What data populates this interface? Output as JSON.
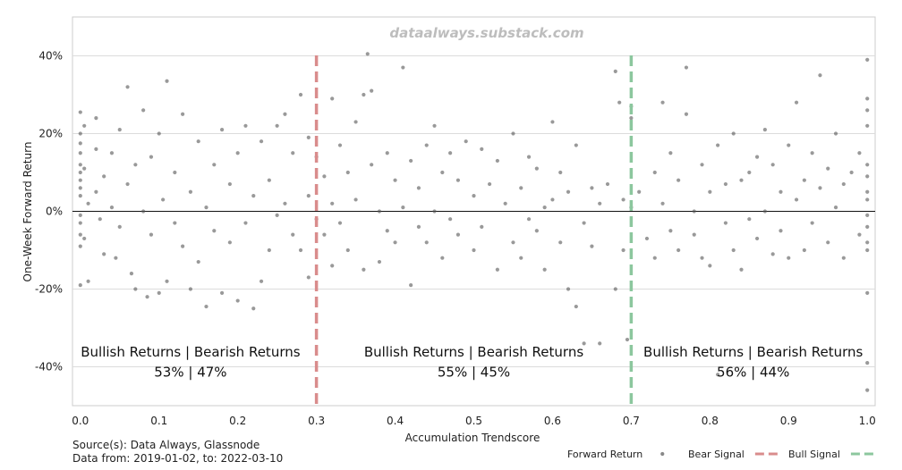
{
  "chart_data": {
    "type": "scatter",
    "watermark": "dataalways.substack.com",
    "xlabel": "Accumulation Trendscore",
    "ylabel": "One-Week Forward Return",
    "xlim": [
      -0.01,
      1.01
    ],
    "ylim": [
      -0.5,
      0.5
    ],
    "x_ticks": [
      0.0,
      0.1,
      0.2,
      0.3,
      0.4,
      0.5,
      0.6,
      0.7,
      0.8,
      0.9,
      1.0
    ],
    "x_tick_labels": [
      "0.0",
      "0.1",
      "0.2",
      "0.3",
      "0.4",
      "0.5",
      "0.6",
      "0.7",
      "0.8",
      "0.9",
      "1.0"
    ],
    "y_ticks": [
      -0.4,
      -0.2,
      0.0,
      0.2,
      0.4
    ],
    "y_tick_labels": [
      "-40%",
      "-20%",
      "0%",
      "20%",
      "40%"
    ],
    "grid": "horizontal",
    "zero_line": 0.0,
    "signal_lines": [
      {
        "name": "Bear Signal",
        "x": 0.3,
        "color": "#d98c8c"
      },
      {
        "name": "Bull Signal",
        "x": 0.7,
        "color": "#8cc79e"
      }
    ],
    "regions": [
      {
        "header": "Bullish Returns  | Bearish Returns",
        "values": "53% | 47%",
        "x_center": 0.14
      },
      {
        "header": "Bullish Returns  | Bearish Returns",
        "values": "55% | 45%",
        "x_center": 0.5
      },
      {
        "header": "Bullish Returns  | Bearish Returns",
        "values": "56% | 44%",
        "x_center": 0.855
      }
    ],
    "region_y": {
      "header": -0.373,
      "values": -0.425
    },
    "legend": {
      "placement": "bottom-right",
      "entries": [
        {
          "label": "Forward Return",
          "kind": "dot",
          "color": "#555555"
        },
        {
          "label": "Bear Signal",
          "kind": "dash",
          "color": "#d98c8c"
        },
        {
          "label": "Bull Signal",
          "kind": "dash",
          "color": "#8cc79e"
        }
      ]
    },
    "series": [
      {
        "name": "Forward Return",
        "color": "#555555",
        "points": [
          [
            0.0,
            0.255
          ],
          [
            0.0,
            0.2
          ],
          [
            0.0,
            0.175
          ],
          [
            0.0,
            0.15
          ],
          [
            0.0,
            0.12
          ],
          [
            0.0,
            0.1
          ],
          [
            0.0,
            0.08
          ],
          [
            0.0,
            0.06
          ],
          [
            0.0,
            0.04
          ],
          [
            0.0,
            -0.01
          ],
          [
            0.0,
            -0.03
          ],
          [
            0.0,
            -0.06
          ],
          [
            0.0,
            -0.09
          ],
          [
            0.0,
            -0.19
          ],
          [
            0.005,
            0.22
          ],
          [
            0.005,
            0.11
          ],
          [
            0.005,
            -0.07
          ],
          [
            0.01,
            -0.18
          ],
          [
            0.01,
            0.02
          ],
          [
            0.02,
            0.24
          ],
          [
            0.02,
            0.16
          ],
          [
            0.02,
            0.05
          ],
          [
            0.025,
            -0.02
          ],
          [
            0.03,
            -0.11
          ],
          [
            0.03,
            0.09
          ],
          [
            0.04,
            0.15
          ],
          [
            0.04,
            0.01
          ],
          [
            0.045,
            -0.12
          ],
          [
            0.05,
            0.21
          ],
          [
            0.05,
            -0.04
          ],
          [
            0.06,
            0.32
          ],
          [
            0.06,
            0.07
          ],
          [
            0.065,
            -0.16
          ],
          [
            0.07,
            0.12
          ],
          [
            0.07,
            -0.2
          ],
          [
            0.08,
            0.26
          ],
          [
            0.08,
            0.0
          ],
          [
            0.085,
            -0.22
          ],
          [
            0.09,
            0.14
          ],
          [
            0.09,
            -0.06
          ],
          [
            0.1,
            0.2
          ],
          [
            0.1,
            -0.21
          ],
          [
            0.105,
            0.03
          ],
          [
            0.11,
            0.335
          ],
          [
            0.11,
            -0.18
          ],
          [
            0.12,
            0.1
          ],
          [
            0.12,
            -0.03
          ],
          [
            0.13,
            0.25
          ],
          [
            0.13,
            -0.09
          ],
          [
            0.14,
            0.05
          ],
          [
            0.14,
            -0.2
          ],
          [
            0.15,
            0.18
          ],
          [
            0.15,
            -0.13
          ],
          [
            0.16,
            0.01
          ],
          [
            0.16,
            -0.245
          ],
          [
            0.17,
            0.12
          ],
          [
            0.17,
            -0.05
          ],
          [
            0.18,
            0.21
          ],
          [
            0.18,
            -0.21
          ],
          [
            0.19,
            0.07
          ],
          [
            0.19,
            -0.08
          ],
          [
            0.2,
            0.15
          ],
          [
            0.2,
            -0.23
          ],
          [
            0.21,
            0.22
          ],
          [
            0.21,
            -0.03
          ],
          [
            0.22,
            -0.25
          ],
          [
            0.22,
            0.04
          ],
          [
            0.23,
            0.18
          ],
          [
            0.23,
            -0.18
          ],
          [
            0.24,
            0.08
          ],
          [
            0.24,
            -0.1
          ],
          [
            0.25,
            0.22
          ],
          [
            0.25,
            -0.01
          ],
          [
            0.26,
            0.25
          ],
          [
            0.26,
            0.02
          ],
          [
            0.27,
            0.15
          ],
          [
            0.27,
            -0.06
          ],
          [
            0.28,
            0.3
          ],
          [
            0.28,
            -0.1
          ],
          [
            0.29,
            0.19
          ],
          [
            0.29,
            0.04
          ],
          [
            0.29,
            -0.17
          ],
          [
            0.3,
            0.14
          ],
          [
            0.3,
            -0.02
          ],
          [
            0.31,
            0.09
          ],
          [
            0.31,
            -0.06
          ],
          [
            0.32,
            0.29
          ],
          [
            0.32,
            0.02
          ],
          [
            0.32,
            -0.14
          ],
          [
            0.33,
            0.17
          ],
          [
            0.33,
            -0.03
          ],
          [
            0.34,
            0.1
          ],
          [
            0.34,
            -0.1
          ],
          [
            0.35,
            0.23
          ],
          [
            0.35,
            0.03
          ],
          [
            0.36,
            0.3
          ],
          [
            0.36,
            -0.15
          ],
          [
            0.365,
            0.405
          ],
          [
            0.37,
            0.12
          ],
          [
            0.37,
            0.31
          ],
          [
            0.38,
            0.0
          ],
          [
            0.38,
            -0.13
          ],
          [
            0.39,
            0.15
          ],
          [
            0.39,
            -0.05
          ],
          [
            0.4,
            0.08
          ],
          [
            0.4,
            -0.08
          ],
          [
            0.41,
            0.37
          ],
          [
            0.41,
            0.01
          ],
          [
            0.42,
            -0.19
          ],
          [
            0.42,
            0.13
          ],
          [
            0.43,
            0.06
          ],
          [
            0.43,
            -0.04
          ],
          [
            0.44,
            0.17
          ],
          [
            0.44,
            -0.08
          ],
          [
            0.45,
            0.22
          ],
          [
            0.45,
            0.0
          ],
          [
            0.46,
            0.1
          ],
          [
            0.46,
            -0.12
          ],
          [
            0.47,
            0.15
          ],
          [
            0.47,
            -0.02
          ],
          [
            0.48,
            0.08
          ],
          [
            0.48,
            -0.06
          ],
          [
            0.49,
            0.18
          ],
          [
            0.5,
            0.04
          ],
          [
            0.5,
            -0.1
          ],
          [
            0.51,
            0.16
          ],
          [
            0.51,
            -0.04
          ],
          [
            0.52,
            0.07
          ],
          [
            0.53,
            0.13
          ],
          [
            0.53,
            -0.15
          ],
          [
            0.54,
            0.02
          ],
          [
            0.55,
            0.2
          ],
          [
            0.55,
            -0.08
          ],
          [
            0.56,
            0.06
          ],
          [
            0.56,
            -0.12
          ],
          [
            0.57,
            0.14
          ],
          [
            0.57,
            -0.02
          ],
          [
            0.58,
            0.11
          ],
          [
            0.58,
            -0.05
          ],
          [
            0.59,
            0.01
          ],
          [
            0.59,
            -0.15
          ],
          [
            0.6,
            0.23
          ],
          [
            0.6,
            0.03
          ],
          [
            0.61,
            -0.08
          ],
          [
            0.61,
            0.1
          ],
          [
            0.62,
            0.05
          ],
          [
            0.62,
            -0.2
          ],
          [
            0.63,
            -0.245
          ],
          [
            0.63,
            0.17
          ],
          [
            0.64,
            -0.34
          ],
          [
            0.64,
            -0.03
          ],
          [
            0.65,
            0.06
          ],
          [
            0.65,
            -0.09
          ],
          [
            0.66,
            0.02
          ],
          [
            0.66,
            -0.34
          ],
          [
            0.67,
            0.07
          ],
          [
            0.68,
            -0.2
          ],
          [
            0.68,
            0.36
          ],
          [
            0.685,
            0.28
          ],
          [
            0.69,
            0.03
          ],
          [
            0.69,
            -0.1
          ],
          [
            0.695,
            -0.33
          ],
          [
            0.7,
            0.24
          ],
          [
            0.7,
            0.27
          ],
          [
            0.7,
            0.01
          ],
          [
            0.71,
            0.05
          ],
          [
            0.72,
            -0.07
          ],
          [
            0.73,
            0.1
          ],
          [
            0.73,
            -0.12
          ],
          [
            0.74,
            0.28
          ],
          [
            0.74,
            0.02
          ],
          [
            0.75,
            0.15
          ],
          [
            0.75,
            -0.05
          ],
          [
            0.76,
            0.08
          ],
          [
            0.76,
            -0.1
          ],
          [
            0.77,
            0.37
          ],
          [
            0.77,
            0.25
          ],
          [
            0.78,
            0.0
          ],
          [
            0.78,
            -0.06
          ],
          [
            0.79,
            0.12
          ],
          [
            0.79,
            -0.12
          ],
          [
            0.8,
            0.05
          ],
          [
            0.8,
            -0.14
          ],
          [
            0.81,
            0.17
          ],
          [
            0.81,
            -0.42
          ],
          [
            0.82,
            0.07
          ],
          [
            0.82,
            -0.03
          ],
          [
            0.83,
            0.2
          ],
          [
            0.83,
            -0.1
          ],
          [
            0.84,
            0.08
          ],
          [
            0.84,
            -0.15
          ],
          [
            0.85,
            0.1
          ],
          [
            0.85,
            -0.02
          ],
          [
            0.86,
            0.14
          ],
          [
            0.86,
            -0.07
          ],
          [
            0.87,
            0.21
          ],
          [
            0.87,
            0.0
          ],
          [
            0.88,
            0.12
          ],
          [
            0.88,
            -0.11
          ],
          [
            0.89,
            0.05
          ],
          [
            0.89,
            -0.05
          ],
          [
            0.9,
            0.17
          ],
          [
            0.9,
            -0.12
          ],
          [
            0.91,
            0.28
          ],
          [
            0.91,
            0.03
          ],
          [
            0.92,
            0.08
          ],
          [
            0.92,
            -0.1
          ],
          [
            0.93,
            0.15
          ],
          [
            0.93,
            -0.03
          ],
          [
            0.94,
            0.35
          ],
          [
            0.94,
            0.06
          ],
          [
            0.95,
            0.11
          ],
          [
            0.95,
            -0.08
          ],
          [
            0.96,
            0.2
          ],
          [
            0.96,
            0.01
          ],
          [
            0.97,
            0.07
          ],
          [
            0.97,
            -0.12
          ],
          [
            0.98,
            0.1
          ],
          [
            0.99,
            0.15
          ],
          [
            0.99,
            -0.06
          ],
          [
            1.0,
            0.39
          ],
          [
            1.0,
            0.29
          ],
          [
            1.0,
            0.26
          ],
          [
            1.0,
            0.22
          ],
          [
            1.0,
            0.12
          ],
          [
            1.0,
            0.09
          ],
          [
            1.0,
            0.05
          ],
          [
            1.0,
            0.03
          ],
          [
            1.0,
            -0.01
          ],
          [
            1.0,
            -0.04
          ],
          [
            1.0,
            -0.08
          ],
          [
            1.0,
            -0.1
          ],
          [
            1.0,
            -0.21
          ],
          [
            1.0,
            -0.39
          ],
          [
            1.0,
            -0.46
          ]
        ]
      }
    ]
  },
  "footer": {
    "source": "Source(s): Data Always, Glassnode",
    "date_range": "Data from: 2019-01-02, to: 2022-03-10"
  }
}
